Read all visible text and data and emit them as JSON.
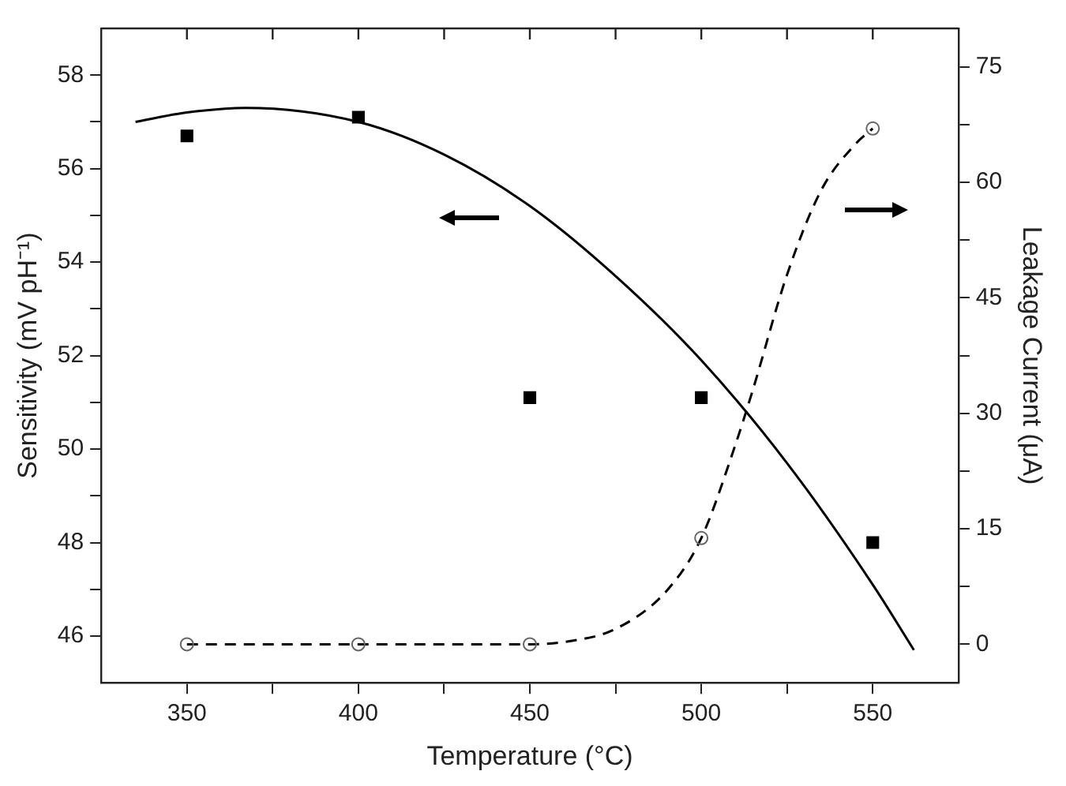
{
  "chart_data": {
    "type": "scatter",
    "xlabel": "Temperature (°C)",
    "ylabel": "Sensitivity (mV pH⁻¹)",
    "y2label": "Leakage Current (μA)",
    "xlim": [
      325,
      575
    ],
    "xticks": [
      350,
      {
        "value": 375,
        "label": null
      },
      400,
      {
        "value": 425,
        "label": null
      },
      450,
      {
        "value": 475,
        "label": null
      },
      500,
      {
        "value": 525,
        "label": null
      },
      550
    ],
    "ylim": [
      45,
      59
    ],
    "yticks": [
      46,
      {
        "value": 47,
        "label": null
      },
      48,
      {
        "value": 49,
        "label": null
      },
      50,
      {
        "value": 51,
        "label": null
      },
      52,
      {
        "value": 53,
        "label": null
      },
      54,
      {
        "value": 55,
        "label": null
      },
      56,
      {
        "value": 57,
        "label": null
      },
      58
    ],
    "y2lim": [
      -5,
      80
    ],
    "y2ticks": [
      0,
      {
        "value": 7.5,
        "label": null
      },
      15,
      {
        "value": 22.5,
        "label": null
      },
      30,
      {
        "value": 37.5,
        "label": null
      },
      45,
      {
        "value": 52.5,
        "label": null
      },
      60,
      {
        "value": 67.5,
        "label": null
      },
      75
    ],
    "grid": false,
    "legend": false,
    "series": [
      {
        "type": "scatter",
        "marker": "square",
        "color": "#000000",
        "x": [
          350,
          400,
          450,
          500,
          550
        ],
        "values": [
          56.7,
          57.1,
          51.1,
          51.1,
          48.0
        ]
      },
      {
        "type": "line",
        "marker": "none",
        "line_style": "solid",
        "color": "#000000",
        "x": [
          335,
          350,
          367,
          400,
          425,
          450,
          475,
          500,
          525,
          550,
          562
        ],
        "values": [
          57.0,
          57.2,
          57.3,
          57.0,
          56.3,
          55.2,
          53.7,
          51.9,
          49.7,
          47.1,
          45.7
        ]
      },
      {
        "type": "scatter",
        "axis": "y2",
        "marker": "circle",
        "color": "#666666",
        "x": [
          350,
          400,
          450,
          500,
          550
        ],
        "values": [
          0,
          0,
          0,
          13.8,
          67
        ]
      },
      {
        "type": "line",
        "axis": "y2",
        "marker": "none",
        "line_style": "dashed",
        "color": "#000000",
        "x": [
          350,
          400,
          450,
          460,
          475,
          490,
          500,
          510,
          515,
          525,
          535,
          545,
          550
        ],
        "values": [
          0,
          0,
          0,
          0.3,
          2,
          7,
          13.8,
          26,
          33,
          48,
          59,
          65,
          67
        ]
      }
    ]
  }
}
